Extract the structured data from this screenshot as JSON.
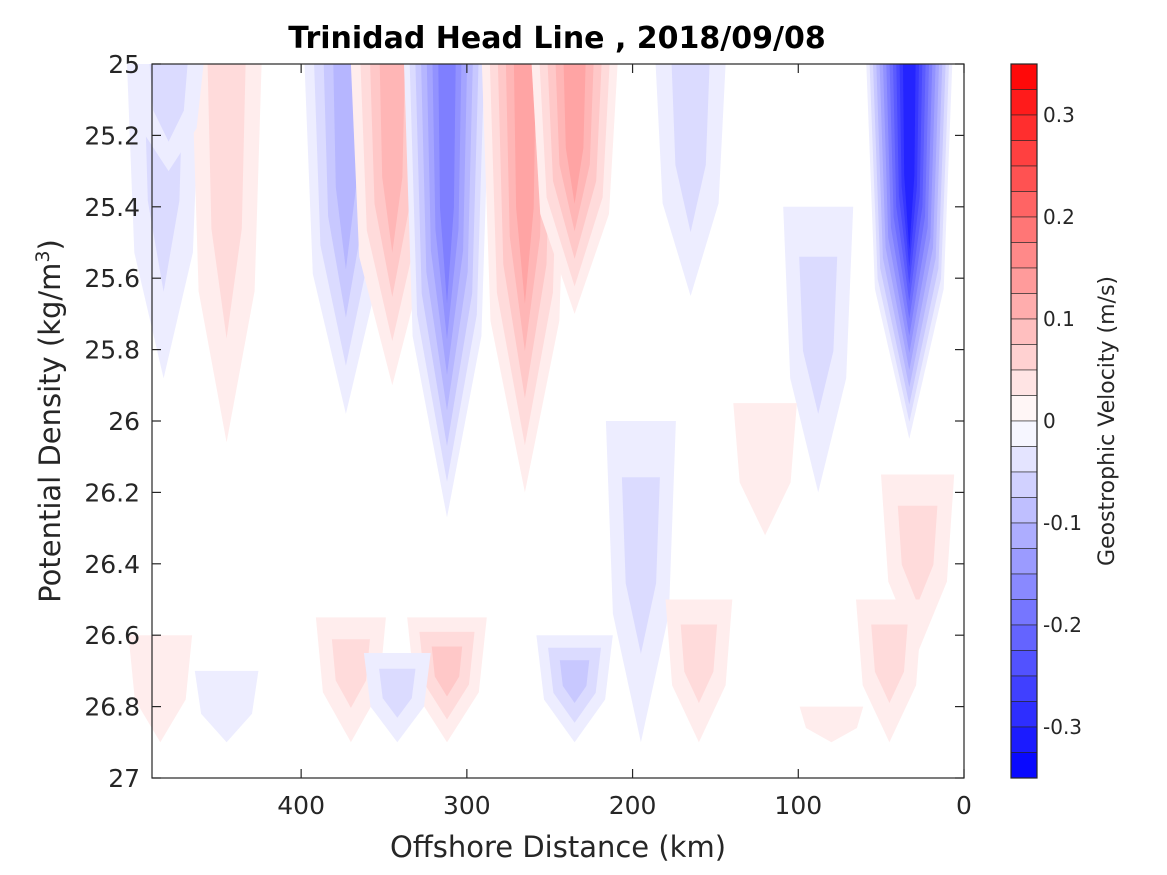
{
  "chart_data": {
    "type": "heatmap",
    "title": "Trinidad Head Line , 2018/09/08",
    "xlabel": "Offshore Distance (km)",
    "ylabel": "Potential Density (kg/m",
    "ylabel_sup": "3",
    "ylabel_close": ")",
    "colorbar_label": "Geostrophic Velocity (m/s)",
    "xlim": [
      490,
      0
    ],
    "x_reversed": true,
    "ylim": [
      25,
      27
    ],
    "y_reversed": true,
    "xticks": [
      400,
      300,
      200,
      100,
      0
    ],
    "yticks": [
      25,
      25.2,
      25.4,
      25.6,
      25.8,
      26,
      26.2,
      26.4,
      26.6,
      26.8,
      27
    ],
    "ytick_labels": [
      "25",
      "25.2",
      "25.4",
      "25.6",
      "25.8",
      "26",
      "26.2",
      "26.4",
      "26.6",
      "26.8",
      "27"
    ],
    "colorbar_range": [
      -0.35,
      0.35
    ],
    "colorbar_ticks": [
      0.3,
      0.2,
      0.1,
      0,
      -0.1,
      -0.2,
      -0.3
    ],
    "colorbar_tick_labels": [
      "0.3",
      "0.2",
      "0.1",
      "0",
      "-0.1",
      "-0.2",
      "-0.3"
    ],
    "contour_step": 0.025,
    "colors": {
      "negative": "#0000ff",
      "positive": "#ff0000",
      "zero": "#ffffff"
    },
    "cores": [
      {
        "sign": "negative",
        "x": 483,
        "y_top": 25,
        "y_bottom": 25.88,
        "peak": -0.06
      },
      {
        "sign": "positive",
        "x": 445,
        "y_top": 25,
        "y_bottom": 26.06,
        "peak": 0.05
      },
      {
        "sign": "negative",
        "x": 373,
        "y_top": 25,
        "y_bottom": 25.98,
        "peak": -0.09
      },
      {
        "sign": "positive",
        "x": 345,
        "y_top": 25,
        "y_bottom": 25.9,
        "peak": 0.09
      },
      {
        "sign": "negative",
        "x": 312,
        "y_top": 25,
        "y_bottom": 26.27,
        "peak": -0.17
      },
      {
        "sign": "positive",
        "x": 265,
        "y_top": 25,
        "y_bottom": 26.2,
        "peak": 0.12
      },
      {
        "sign": "positive",
        "x": 235,
        "y_top": 25,
        "y_bottom": 25.7,
        "peak": 0.13
      },
      {
        "sign": "negative",
        "x": 165,
        "y_top": 25,
        "y_bottom": 25.65,
        "peak": -0.05
      },
      {
        "sign": "negative",
        "x": 88,
        "y_top": 25.4,
        "y_bottom": 26.2,
        "peak": -0.05
      },
      {
        "sign": "negative",
        "x": 33,
        "y_top": 25,
        "y_bottom": 26.05,
        "peak": -0.31
      },
      {
        "sign": "negative",
        "x": 480,
        "y_top": 25,
        "y_bottom": 25.3,
        "peak": -0.05
      },
      {
        "sign": "positive",
        "x": 120,
        "y_top": 25.95,
        "y_bottom": 26.32,
        "peak": 0.03
      },
      {
        "sign": "positive",
        "x": 28,
        "y_top": 26.15,
        "y_bottom": 26.65,
        "peak": 0.06
      },
      {
        "sign": "negative",
        "x": 195,
        "y_top": 26.0,
        "y_bottom": 26.9,
        "peak": -0.05
      },
      {
        "sign": "negative",
        "x": 235,
        "y_top": 26.6,
        "y_bottom": 26.9,
        "peak": -0.07
      },
      {
        "sign": "positive",
        "x": 160,
        "y_top": 26.5,
        "y_bottom": 26.9,
        "peak": 0.04
      },
      {
        "sign": "positive",
        "x": 312,
        "y_top": 26.55,
        "y_bottom": 26.9,
        "peak": 0.08
      },
      {
        "sign": "positive",
        "x": 370,
        "y_top": 26.55,
        "y_bottom": 26.9,
        "peak": 0.05
      },
      {
        "sign": "negative",
        "x": 342,
        "y_top": 26.65,
        "y_bottom": 26.9,
        "peak": -0.04
      },
      {
        "sign": "negative",
        "x": 445,
        "y_top": 26.7,
        "y_bottom": 26.9,
        "peak": -0.03
      },
      {
        "sign": "positive",
        "x": 485,
        "y_top": 26.6,
        "y_bottom": 26.9,
        "peak": 0.03
      },
      {
        "sign": "positive",
        "x": 80,
        "y_top": 26.8,
        "y_bottom": 26.9,
        "peak": 0.03
      },
      {
        "sign": "positive",
        "x": 45,
        "y_top": 26.5,
        "y_bottom": 26.9,
        "peak": 0.04
      }
    ],
    "data_bottom_density": 26.9,
    "grid": false,
    "legend": "colorbar-right"
  }
}
